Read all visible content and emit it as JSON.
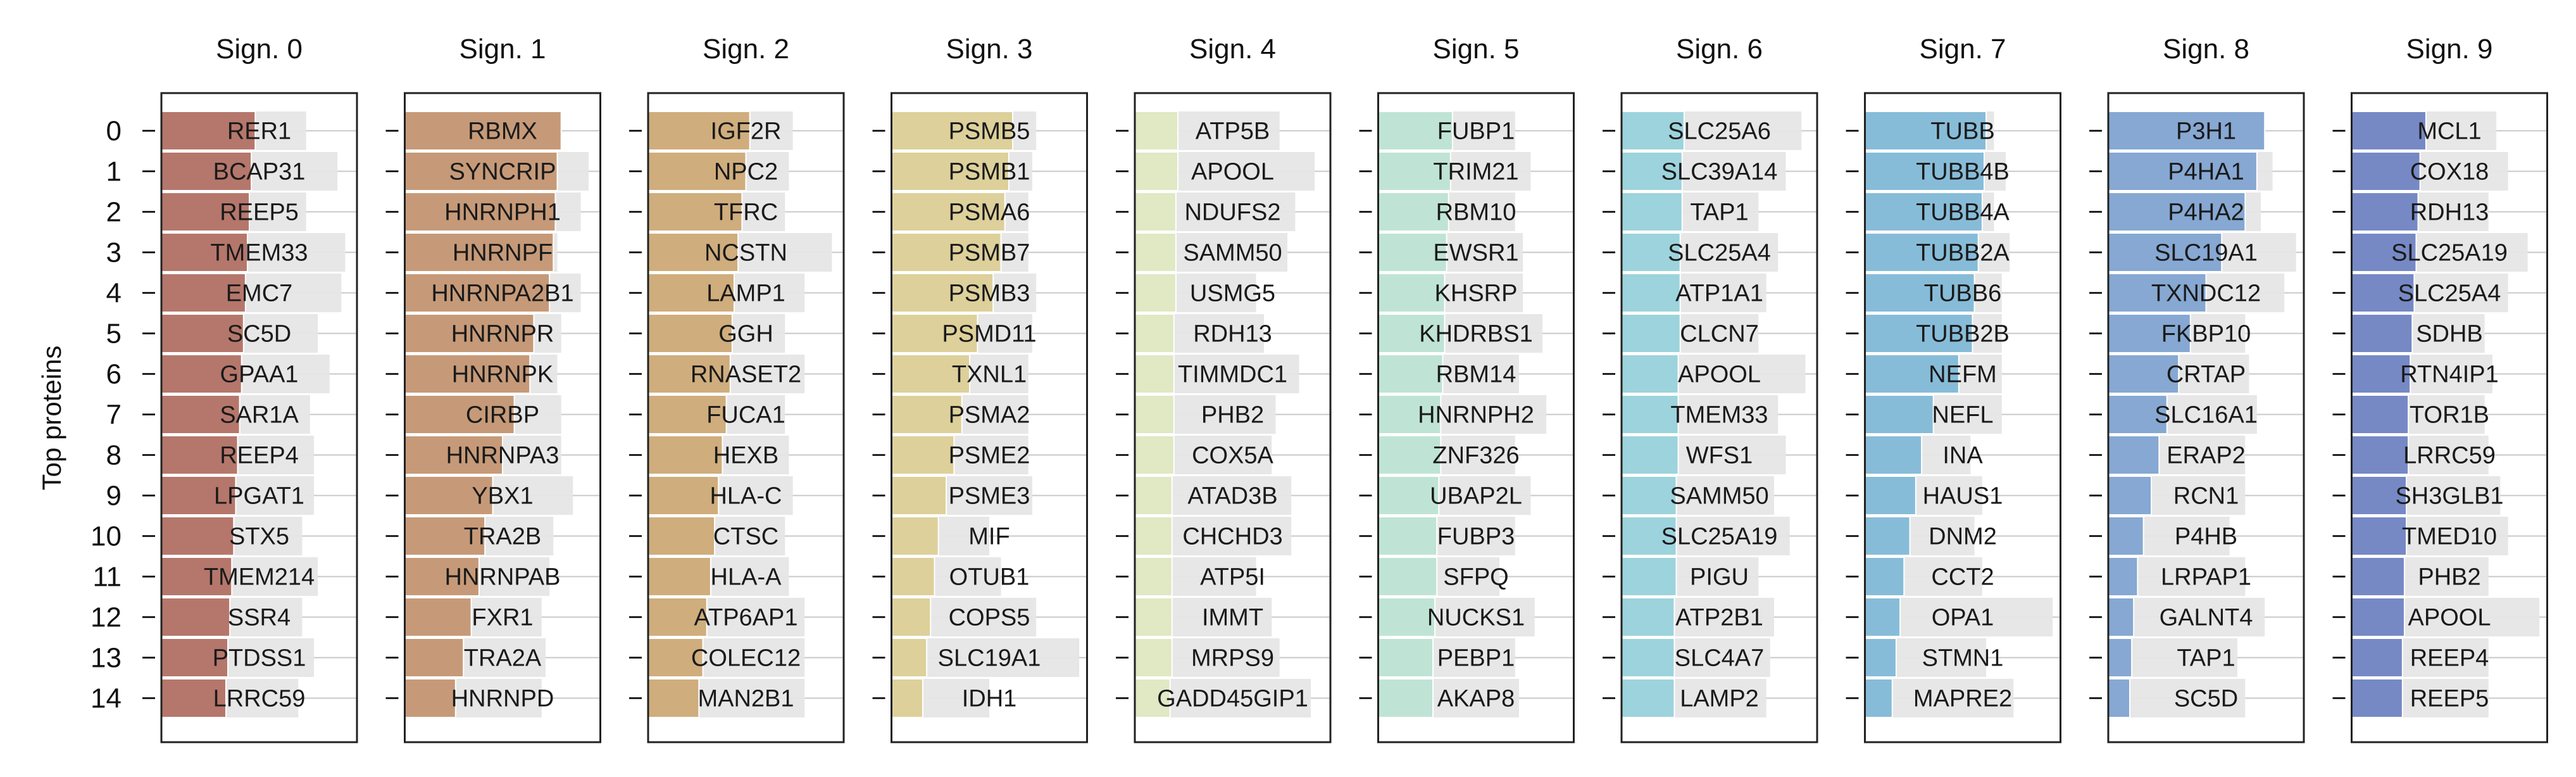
{
  "chart_data": {
    "type": "bar",
    "orientation": "horizontal",
    "ylabel": "Top proteins",
    "y_ticks": [
      "0",
      "1",
      "2",
      "3",
      "4",
      "5",
      "6",
      "7",
      "8",
      "9",
      "10",
      "11",
      "12",
      "13",
      "14"
    ],
    "xlim": [
      0,
      1
    ],
    "grid": "horizontal",
    "background_bar_color": "#e6e6e6",
    "panels": [
      {
        "title": "Sign. 0",
        "color": "#b5776b",
        "proteins": [
          "RER1",
          "BCAP31",
          "REEP5",
          "TMEM33",
          "EMC7",
          "SC5D",
          "GPAA1",
          "SAR1A",
          "REEP4",
          "LPGAT1",
          "STX5",
          "TMEM214",
          "SSR4",
          "PTDSS1",
          "LRRC59"
        ],
        "values": [
          0.48,
          0.46,
          0.45,
          0.44,
          0.43,
          0.42,
          0.41,
          0.4,
          0.39,
          0.38,
          0.37,
          0.36,
          0.35,
          0.34,
          0.33
        ],
        "background": [
          0.74,
          0.9,
          0.74,
          0.94,
          0.92,
          0.8,
          0.86,
          0.76,
          0.78,
          0.78,
          0.72,
          0.8,
          0.72,
          0.78,
          0.7
        ]
      },
      {
        "title": "Sign. 1",
        "color": "#c69a78",
        "proteins": [
          "RBMX",
          "SYNCRIP",
          "HNRNPH1",
          "HNRNPF",
          "HNRNPA2B1",
          "HNRNPR",
          "HNRNPK",
          "CIRBP",
          "HNRNPA3",
          "YBX1",
          "TRA2B",
          "HNRNPAB",
          "FXR1",
          "TRA2A",
          "HNRNPD"
        ],
        "values": [
          0.8,
          0.78,
          0.77,
          0.76,
          0.74,
          0.66,
          0.64,
          0.56,
          0.5,
          0.45,
          0.41,
          0.38,
          0.34,
          0.3,
          0.26
        ],
        "background": [
          0.8,
          0.94,
          0.9,
          0.78,
          0.9,
          0.8,
          0.78,
          0.8,
          0.8,
          0.86,
          0.76,
          0.74,
          0.7,
          0.72,
          0.7
        ]
      },
      {
        "title": "Sign. 2",
        "color": "#cfad7d",
        "proteins": [
          "IGF2R",
          "NPC2",
          "TFRC",
          "NCSTN",
          "LAMP1",
          "GGH",
          "RNASET2",
          "FUCA1",
          "HEXB",
          "HLA-C",
          "CTSC",
          "HLA-A",
          "ATP6AP1",
          "COLEC12",
          "MAN2B1"
        ],
        "values": [
          0.52,
          0.5,
          0.48,
          0.46,
          0.44,
          0.43,
          0.42,
          0.4,
          0.38,
          0.36,
          0.34,
          0.32,
          0.3,
          0.28,
          0.26
        ],
        "background": [
          0.74,
          0.72,
          0.7,
          0.94,
          0.8,
          0.7,
          0.8,
          0.7,
          0.72,
          0.74,
          0.7,
          0.72,
          0.8,
          0.8,
          0.8
        ]
      },
      {
        "title": "Sign. 3",
        "color": "#ddd09a",
        "proteins": [
          "PSMB5",
          "PSMB1",
          "PSMA6",
          "PSMB7",
          "PSMB3",
          "PSMD11",
          "TXNL1",
          "PSMA2",
          "PSME2",
          "PSME3",
          "MIF",
          "OTUB1",
          "COPS5",
          "SLC19A1",
          "IDH1"
        ],
        "values": [
          0.62,
          0.6,
          0.58,
          0.56,
          0.52,
          0.44,
          0.4,
          0.36,
          0.32,
          0.28,
          0.24,
          0.22,
          0.2,
          0.18,
          0.16
        ],
        "background": [
          0.74,
          0.72,
          0.7,
          0.7,
          0.74,
          0.72,
          0.7,
          0.7,
          0.7,
          0.72,
          0.5,
          0.56,
          0.74,
          0.96,
          0.5
        ]
      },
      {
        "title": "Sign. 4",
        "color": "#e0e8c4",
        "proteins": [
          "ATP5B",
          "APOOL",
          "NDUFS2",
          "SAMM50",
          "USMG5",
          "RDH13",
          "TIMMDC1",
          "PHB2",
          "COX5A",
          "ATAD3B",
          "CHCHD3",
          "ATP5I",
          "IMMT",
          "MRPS9",
          "GADD45GIP1"
        ],
        "values": [
          0.22,
          0.22,
          0.21,
          0.21,
          0.21,
          0.2,
          0.2,
          0.2,
          0.2,
          0.19,
          0.19,
          0.19,
          0.19,
          0.19,
          0.18
        ],
        "background": [
          0.74,
          0.92,
          0.82,
          0.78,
          0.62,
          0.66,
          0.84,
          0.72,
          0.7,
          0.8,
          0.8,
          0.62,
          0.7,
          0.74,
          0.9
        ]
      },
      {
        "title": "Sign. 5",
        "color": "#bfe4d6",
        "proteins": [
          "FUBP1",
          "TRIM21",
          "RBM10",
          "EWSR1",
          "KHSRP",
          "KHDRBS1",
          "RBM14",
          "HNRNPH2",
          "ZNF326",
          "UBAP2L",
          "FUBP3",
          "SFPQ",
          "NUCKS1",
          "PEBP1",
          "AKAP8"
        ],
        "values": [
          0.38,
          0.37,
          0.36,
          0.35,
          0.34,
          0.34,
          0.33,
          0.32,
          0.32,
          0.31,
          0.3,
          0.3,
          0.29,
          0.28,
          0.28
        ],
        "background": [
          0.7,
          0.78,
          0.7,
          0.74,
          0.74,
          0.84,
          0.72,
          0.86,
          0.7,
          0.78,
          0.7,
          0.62,
          0.8,
          0.7,
          0.72
        ]
      },
      {
        "title": "Sign. 6",
        "color": "#9dd3dc",
        "proteins": [
          "SLC25A6",
          "SLC39A14",
          "TAP1",
          "SLC25A4",
          "ATP1A1",
          "CLCN7",
          "APOOL",
          "TMEM33",
          "WFS1",
          "SAMM50",
          "SLC25A19",
          "PIGU",
          "ATP2B1",
          "SLC4A7",
          "LAMP2"
        ],
        "values": [
          0.32,
          0.31,
          0.31,
          0.3,
          0.3,
          0.3,
          0.29,
          0.29,
          0.29,
          0.28,
          0.28,
          0.28,
          0.27,
          0.27,
          0.27
        ],
        "background": [
          0.92,
          0.84,
          0.7,
          0.8,
          0.74,
          0.7,
          0.94,
          0.8,
          0.84,
          0.78,
          0.86,
          0.7,
          0.78,
          0.76,
          0.74
        ]
      },
      {
        "title": "Sign. 7",
        "color": "#87bcd8",
        "proteins": [
          "TUBB",
          "TUBB4B",
          "TUBB4A",
          "TUBB2A",
          "TUBB6",
          "TUBB2B",
          "NEFM",
          "NEFL",
          "INA",
          "HAUS1",
          "DNM2",
          "CCT2",
          "OPA1",
          "STMN1",
          "MAPRE2"
        ],
        "values": [
          0.62,
          0.61,
          0.6,
          0.58,
          0.56,
          0.55,
          0.48,
          0.35,
          0.29,
          0.26,
          0.23,
          0.2,
          0.18,
          0.16,
          0.14
        ],
        "background": [
          0.66,
          0.72,
          0.66,
          0.74,
          0.7,
          0.7,
          0.7,
          0.7,
          0.54,
          0.6,
          0.56,
          0.6,
          0.96,
          0.62,
          0.76
        ]
      },
      {
        "title": "Sign. 8",
        "color": "#86a8d2",
        "proteins": [
          "P3H1",
          "P4HA1",
          "P4HA2",
          "SLC19A1",
          "TXNDC12",
          "FKBP10",
          "CRTAP",
          "SLC16A1",
          "ERAP2",
          "RCN1",
          "P4HB",
          "LRPAP1",
          "GALNT4",
          "TAP1",
          "SC5D"
        ],
        "values": [
          0.8,
          0.76,
          0.7,
          0.58,
          0.5,
          0.42,
          0.36,
          0.3,
          0.26,
          0.22,
          0.18,
          0.15,
          0.13,
          0.12,
          0.11
        ],
        "background": [
          0.8,
          0.84,
          0.78,
          0.96,
          0.9,
          0.7,
          0.72,
          0.76,
          0.7,
          0.7,
          0.62,
          0.7,
          0.8,
          0.66,
          0.7
        ]
      },
      {
        "title": "Sign. 9",
        "color": "#7689c5",
        "proteins": [
          "MCL1",
          "COX18",
          "RDH13",
          "SLC25A19",
          "SLC25A4",
          "SDHB",
          "RTN4IP1",
          "TOR1B",
          "LRRC59",
          "SH3GLB1",
          "TMED10",
          "PHB2",
          "APOOL",
          "REEP4",
          "REEP5"
        ],
        "values": [
          0.38,
          0.35,
          0.34,
          0.33,
          0.32,
          0.31,
          0.3,
          0.29,
          0.29,
          0.28,
          0.28,
          0.27,
          0.27,
          0.26,
          0.26
        ],
        "background": [
          0.74,
          0.8,
          0.7,
          0.9,
          0.8,
          0.68,
          0.72,
          0.68,
          0.7,
          0.76,
          0.8,
          0.7,
          0.96,
          0.7,
          0.7
        ]
      }
    ]
  }
}
